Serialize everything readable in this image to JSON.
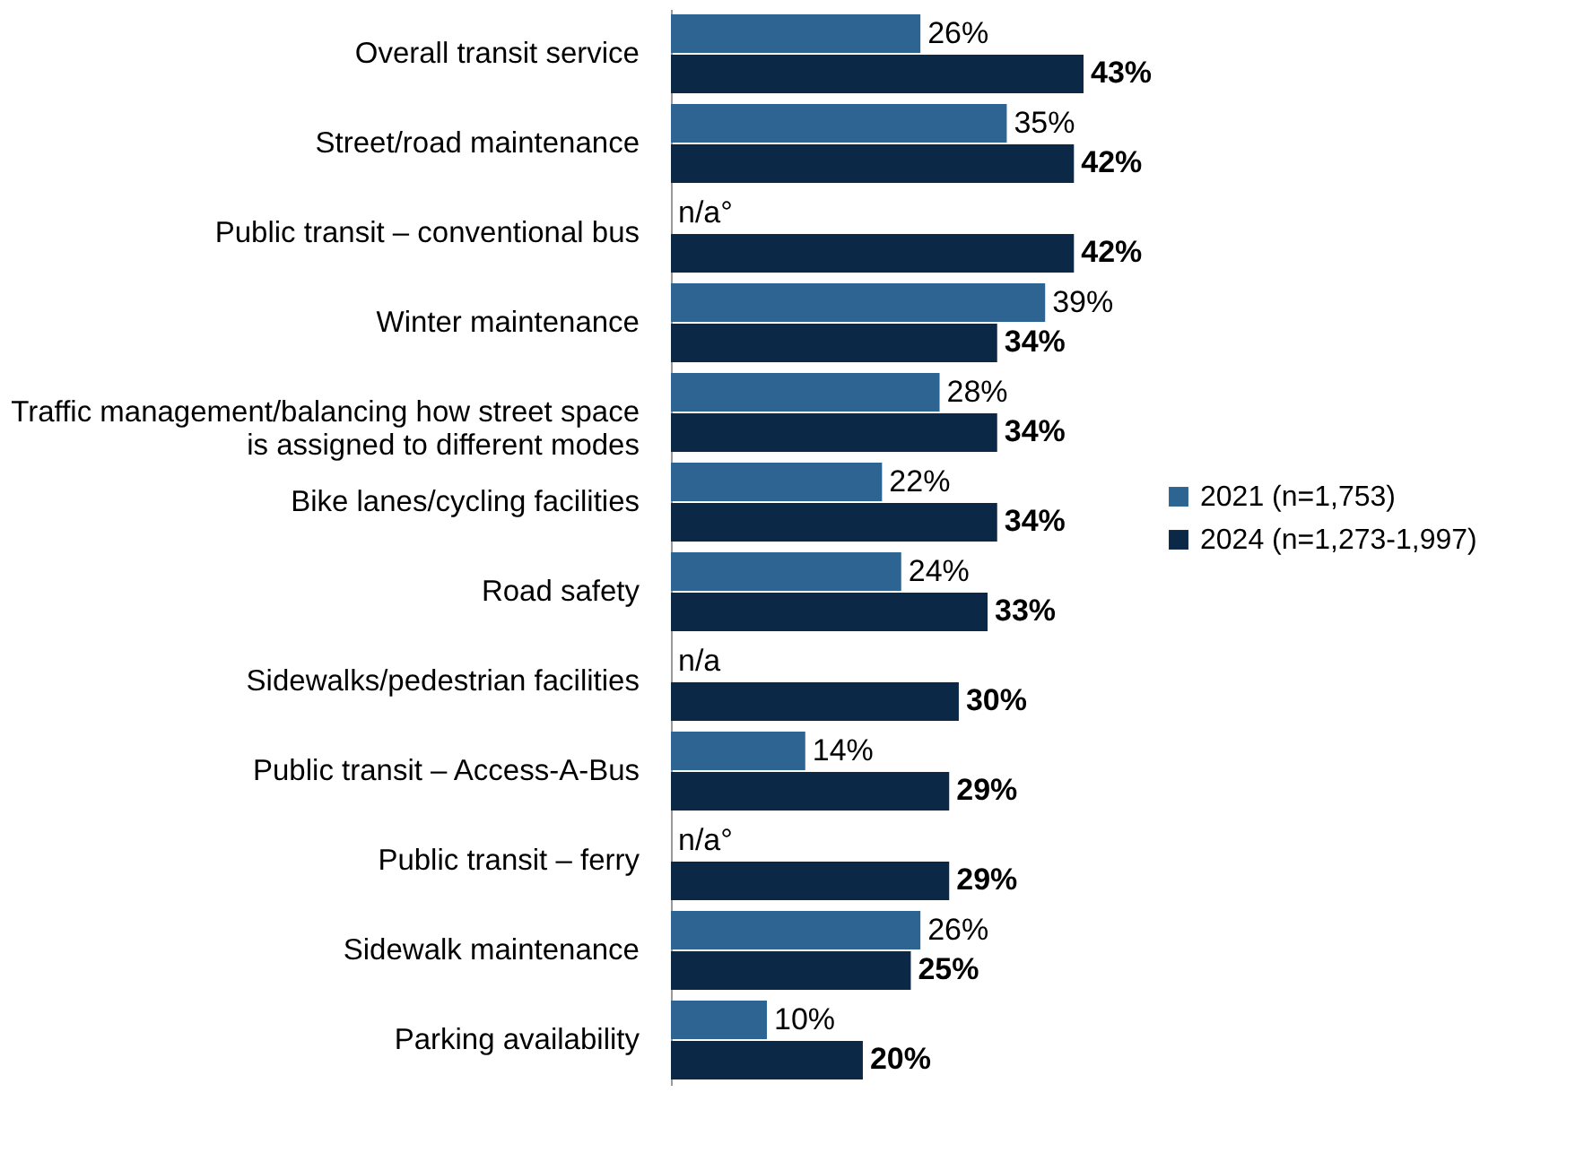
{
  "chart_data": {
    "type": "bar",
    "orientation": "horizontal",
    "legend": "right",
    "categories": [
      "Overall transit service",
      "Street/road maintenance",
      "Public transit – conventional bus",
      "Winter maintenance",
      "Traffic management/balancing how street space\nis assigned to different modes",
      "Bike lanes/cycling facilities",
      "Road safety",
      "Sidewalks/pedestrian facilities",
      "Public transit – Access-A-Bus",
      "Public transit – ferry",
      "Sidewalk maintenance",
      "Parking availability"
    ],
    "series": [
      {
        "name": "2021 (n=1,753)",
        "color": "#2e6491",
        "values": [
          26,
          35,
          null,
          39,
          28,
          22,
          24,
          null,
          14,
          null,
          26,
          10
        ],
        "value_labels": [
          "26%",
          "35%",
          "n/a°",
          "39%",
          "28%",
          "22%",
          "24%",
          "n/a",
          "14%",
          "n/a°",
          "26%",
          "10%"
        ]
      },
      {
        "name": "2024 (n=1,273-1,997)",
        "color": "#0b2846",
        "values": [
          43,
          42,
          42,
          34,
          34,
          34,
          33,
          30,
          29,
          29,
          25,
          20
        ],
        "value_labels": [
          "43%",
          "42%",
          "42%",
          "34%",
          "34%",
          "34%",
          "33%",
          "30%",
          "29%",
          "29%",
          "25%",
          "20%"
        ]
      }
    ]
  }
}
